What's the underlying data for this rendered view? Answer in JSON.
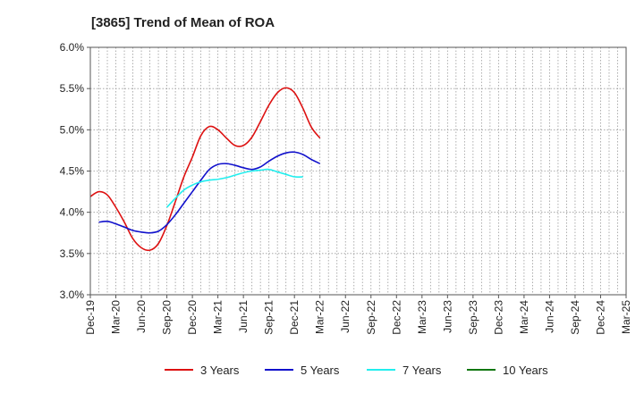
{
  "chart_data": {
    "type": "line",
    "title": "[3865]  Trend of Mean of ROA",
    "xlabel": "",
    "ylabel": "",
    "ylim": [
      3.0,
      6.0
    ],
    "yticks": [
      3.0,
      3.5,
      4.0,
      4.5,
      5.0,
      5.5,
      6.0
    ],
    "ytick_labels": [
      "3.0%",
      "3.5%",
      "4.0%",
      "4.5%",
      "5.0%",
      "5.5%",
      "6.0%"
    ],
    "x_minor_per_major": 3,
    "x_tick_labels": [
      "Dec-19",
      "Mar-20",
      "Jun-20",
      "Sep-20",
      "Dec-20",
      "Mar-21",
      "Jun-21",
      "Sep-21",
      "Dec-21",
      "Mar-22",
      "Jun-22",
      "Sep-22",
      "Dec-22",
      "Mar-23",
      "Jun-23",
      "Sep-23",
      "Dec-23",
      "Mar-24",
      "Jun-24",
      "Sep-24",
      "Dec-24",
      "Mar-25"
    ],
    "grid": true,
    "legend": "bottom",
    "series": [
      {
        "name": "3 Years",
        "color": "#dd1111",
        "start_index": 0,
        "values": [
          4.19,
          4.25,
          4.21,
          4.06,
          3.88,
          3.68,
          3.57,
          3.54,
          3.62,
          3.84,
          4.13,
          4.43,
          4.67,
          4.93,
          5.04,
          5.0,
          4.9,
          4.81,
          4.81,
          4.91,
          5.1,
          5.3,
          5.45,
          5.51,
          5.45,
          5.26,
          5.03,
          4.9
        ]
      },
      {
        "name": "5 Years",
        "color": "#1111cc",
        "start_index": 1,
        "values": [
          3.88,
          3.89,
          3.86,
          3.82,
          3.78,
          3.76,
          3.75,
          3.77,
          3.85,
          3.97,
          4.11,
          4.25,
          4.39,
          4.52,
          4.58,
          4.59,
          4.57,
          4.54,
          4.52,
          4.55,
          4.62,
          4.68,
          4.72,
          4.73,
          4.7,
          4.64,
          4.59
        ]
      },
      {
        "name": "7 Years",
        "color": "#22eeee",
        "start_index": 9,
        "values": [
          4.06,
          4.17,
          4.27,
          4.33,
          4.37,
          4.39,
          4.4,
          4.42,
          4.45,
          4.48,
          4.5,
          4.51,
          4.52,
          4.49,
          4.46,
          4.43,
          4.43
        ]
      },
      {
        "name": "10 Years",
        "color": "#117711",
        "start_index": 0,
        "values": []
      }
    ]
  }
}
